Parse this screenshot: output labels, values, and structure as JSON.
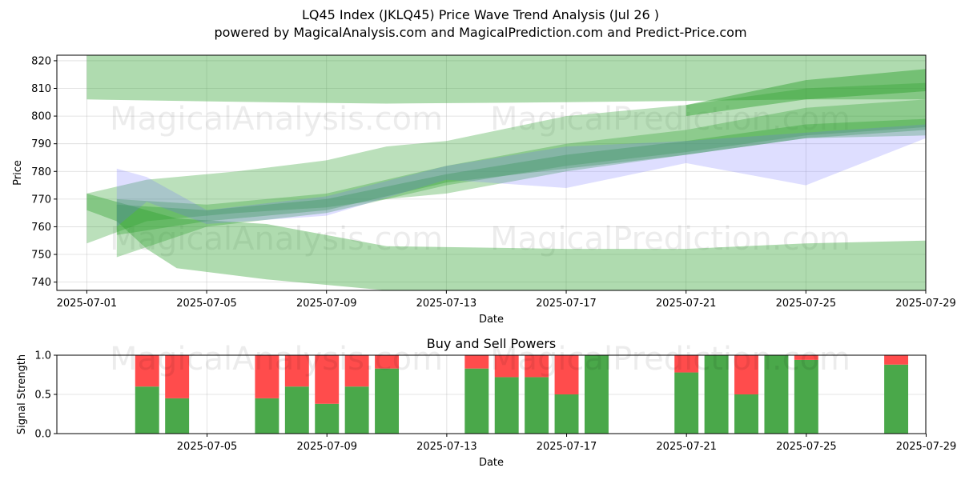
{
  "header": {
    "title": "LQ45 Index (JKLQ45) Price Wave Trend Analysis (Jul 26 )",
    "subtitle": "powered by MagicalAnalysis.com and MagicalPrediction.com and Predict-Price.com"
  },
  "watermarks": [
    "MagicalAnalysis.com",
    "MagicalPrediction.com"
  ],
  "chart_data": [
    {
      "type": "area",
      "xlabel": "Date",
      "ylabel": "Price",
      "xlim": [
        "2025-06-30",
        "2025-07-29"
      ],
      "ylim": [
        737,
        822
      ],
      "xticks": [
        "2025-07-01",
        "2025-07-05",
        "2025-07-09",
        "2025-07-13",
        "2025-07-17",
        "2025-07-21",
        "2025-07-25",
        "2025-07-29"
      ],
      "yticks": [
        740,
        750,
        760,
        770,
        780,
        790,
        800,
        810,
        820
      ],
      "grid": true,
      "colors": {
        "green_band": "#2ca02c",
        "blue_band": "#6a6aff"
      },
      "bands": [
        {
          "color": "green",
          "opacity": 0.38,
          "x": [
            "2025-07-01",
            "2025-07-07",
            "2025-07-11",
            "2025-07-17",
            "2025-07-21",
            "2025-07-25",
            "2025-07-29"
          ],
          "upper": [
            822,
            822,
            822,
            822,
            822,
            822,
            822
          ],
          "lower": [
            806,
            805,
            804.5,
            805,
            805.5,
            806,
            806
          ]
        },
        {
          "color": "green",
          "opacity": 0.38,
          "x": [
            "2025-07-01",
            "2025-07-02",
            "2025-07-03",
            "2025-07-04",
            "2025-07-07",
            "2025-07-11",
            "2025-07-17",
            "2025-07-21",
            "2025-07-25",
            "2025-07-29"
          ],
          "upper": [
            772,
            769,
            766,
            763,
            761,
            753,
            752,
            752,
            754,
            755
          ],
          "lower": [
            766,
            762,
            752,
            745,
            741,
            737,
            737,
            737,
            737,
            737
          ]
        },
        {
          "color": "green",
          "opacity": 0.32,
          "x": [
            "2025-07-01",
            "2025-07-03",
            "2025-07-06",
            "2025-07-09",
            "2025-07-11",
            "2025-07-13",
            "2025-07-17",
            "2025-07-21",
            "2025-07-25",
            "2025-07-29"
          ],
          "upper": [
            772,
            777,
            780,
            784,
            789,
            791,
            800,
            804,
            810,
            812
          ],
          "lower": [
            754,
            762,
            765,
            767,
            770,
            772,
            780,
            786,
            792,
            793
          ]
        },
        {
          "color": "green",
          "opacity": 0.32,
          "x": [
            "2025-07-02",
            "2025-07-05",
            "2025-07-09",
            "2025-07-13",
            "2025-07-17",
            "2025-07-21",
            "2025-07-25",
            "2025-07-29"
          ],
          "upper": [
            770,
            768,
            772,
            782,
            790,
            795,
            803,
            806
          ],
          "lower": [
            749,
            760,
            765,
            775,
            782,
            787,
            793,
            796
          ]
        },
        {
          "color": "green",
          "opacity": 0.35,
          "x": [
            "2025-07-02",
            "2025-07-05",
            "2025-07-09",
            "2025-07-13",
            "2025-07-17",
            "2025-07-21",
            "2025-07-25",
            "2025-07-29"
          ],
          "upper": [
            768,
            766,
            770,
            779,
            786,
            791,
            797,
            799
          ],
          "lower": [
            757,
            762,
            766,
            776,
            781,
            786,
            792,
            795
          ]
        },
        {
          "color": "green",
          "opacity": 0.45,
          "x": [
            "2025-07-21",
            "2025-07-25",
            "2025-07-29"
          ],
          "upper": [
            804,
            813,
            817
          ],
          "lower": [
            800,
            806,
            809
          ]
        },
        {
          "color": "blue",
          "opacity": 0.22,
          "x": [
            "2025-07-02",
            "2025-07-03",
            "2025-07-05",
            "2025-07-09",
            "2025-07-13",
            "2025-07-17",
            "2025-07-21",
            "2025-07-25",
            "2025-07-29"
          ],
          "upper": [
            781,
            778,
            766,
            771,
            782,
            789,
            791,
            794,
            797
          ],
          "lower": [
            760,
            769,
            761,
            764,
            777,
            774,
            783,
            775,
            792
          ]
        }
      ]
    },
    {
      "type": "bar",
      "title": "Buy and Sell Powers",
      "xlabel": "Date",
      "ylabel": "Signal Strength",
      "ylim": [
        0,
        1.0
      ],
      "yticks": [
        0.0,
        0.5,
        1.0
      ],
      "xticks": [
        "2025-07-05",
        "2025-07-09",
        "2025-07-13",
        "2025-07-17",
        "2025-07-21",
        "2025-07-25",
        "2025-07-29"
      ],
      "grid": true,
      "colors": {
        "buy": "#4aa84a",
        "sell": "#ff4c4c"
      },
      "series": [
        {
          "name": "buy",
          "values": [
            0.6,
            0.45,
            0.45,
            0.6,
            0.38,
            0.6,
            0.83,
            0.83,
            0.72,
            0.72,
            0.5,
            1.0,
            0.78,
            1.0,
            0.5,
            1.0,
            0.94,
            0.88
          ]
        },
        {
          "name": "sell",
          "values": [
            0.4,
            0.55,
            0.55,
            0.4,
            0.62,
            0.4,
            0.17,
            0.17,
            0.28,
            0.28,
            0.5,
            0.0,
            0.22,
            0.0,
            0.5,
            0.0,
            0.06,
            0.12
          ]
        }
      ],
      "dates": [
        "2025-07-03",
        "2025-07-04",
        "2025-07-07",
        "2025-07-08",
        "2025-07-09",
        "2025-07-10",
        "2025-07-11",
        "2025-07-14",
        "2025-07-15",
        "2025-07-16",
        "2025-07-17",
        "2025-07-18",
        "2025-07-21",
        "2025-07-22",
        "2025-07-23",
        "2025-07-24",
        "2025-07-25",
        "2025-07-28"
      ]
    }
  ]
}
